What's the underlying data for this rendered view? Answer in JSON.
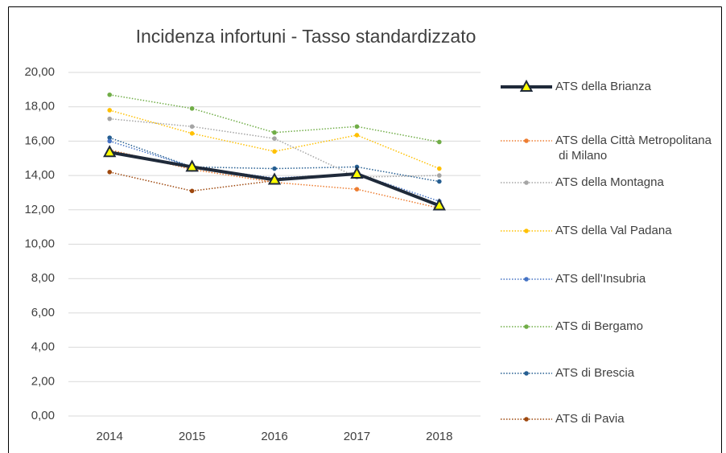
{
  "chart_data": {
    "type": "line",
    "title": "Incidenza infortuni - Tasso standardizzato",
    "categories": [
      "2014",
      "2015",
      "2016",
      "2017",
      "2018"
    ],
    "ylim": [
      0,
      20
    ],
    "yticks": [
      {
        "value": 0,
        "label": "0,00"
      },
      {
        "value": 2,
        "label": "2,00"
      },
      {
        "value": 4,
        "label": "4,00"
      },
      {
        "value": 6,
        "label": "6,00"
      },
      {
        "value": 8,
        "label": "8,00"
      },
      {
        "value": 10,
        "label": "10,00"
      },
      {
        "value": 12,
        "label": "12,00"
      },
      {
        "value": 14,
        "label": "14,00"
      },
      {
        "value": 16,
        "label": "16,00"
      },
      {
        "value": 18,
        "label": "18,00"
      },
      {
        "value": 20,
        "label": "20,00"
      }
    ],
    "grid": true,
    "legend": "right",
    "series": [
      {
        "name": "ATS della Brianza",
        "color": "#1f2a3a",
        "line_style": "solid",
        "marker": "triangle",
        "values": [
          15.35,
          14.5,
          13.75,
          14.1,
          12.25
        ]
      },
      {
        "name": "ATS della Città Metropolitana di Milano",
        "color": "#ed7d31",
        "line_style": "dotted",
        "marker": "circle",
        "values": [
          15.5,
          14.35,
          13.6,
          13.2,
          12.1
        ]
      },
      {
        "name": "ATS della Montagna",
        "color": "#a5a5a5",
        "line_style": "dotted",
        "marker": "circle",
        "values": [
          17.3,
          16.85,
          16.15,
          13.9,
          14.0
        ]
      },
      {
        "name": "ATS della Val Padana",
        "color": "#ffc000",
        "line_style": "dotted",
        "marker": "circle",
        "values": [
          17.8,
          16.45,
          15.4,
          16.35,
          14.4
        ]
      },
      {
        "name": "ATS dell’Insubria",
        "color": "#4472c4",
        "line_style": "dotted",
        "marker": "circle",
        "values": [
          16.0,
          14.5,
          13.85,
          14.1,
          12.5
        ]
      },
      {
        "name": "ATS di Bergamo",
        "color": "#70ad47",
        "line_style": "dotted",
        "marker": "circle",
        "values": [
          18.7,
          17.9,
          16.5,
          16.85,
          15.95
        ]
      },
      {
        "name": "ATS di Brescia",
        "color": "#255e91",
        "line_style": "dotted",
        "marker": "circle",
        "values": [
          16.2,
          14.5,
          14.4,
          14.5,
          13.65
        ]
      },
      {
        "name": "ATS di Pavia",
        "color": "#9e480e",
        "line_style": "dotted",
        "marker": "circle",
        "values": [
          14.2,
          13.1,
          13.7,
          14.15,
          12.2
        ]
      }
    ]
  }
}
